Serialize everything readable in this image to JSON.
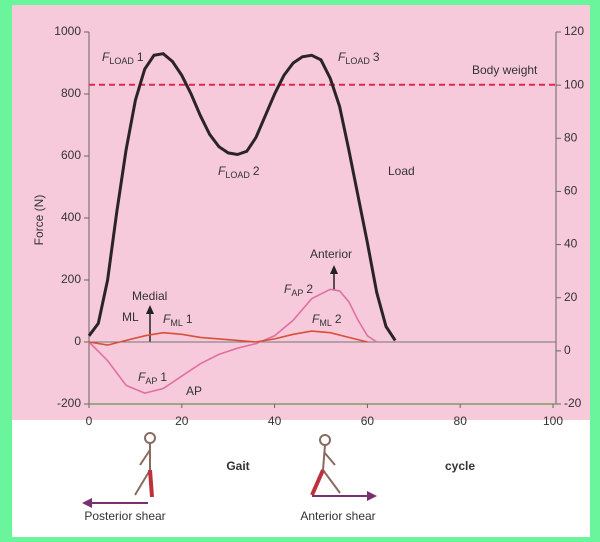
{
  "chart_data": {
    "type": "line",
    "y_label": "Force (N)",
    "x_label_parts": [
      "Gait",
      "cycle"
    ],
    "xlim": [
      0,
      100
    ],
    "xticks": [
      0,
      20,
      40,
      60,
      80,
      100
    ],
    "ylim": [
      -200,
      1000
    ],
    "yticks": [
      -200,
      0,
      200,
      400,
      600,
      800,
      1000
    ],
    "y2lim": [
      -20,
      120
    ],
    "y2ticks": [
      -20,
      0,
      20,
      40,
      60,
      80,
      100,
      120
    ],
    "series": [
      {
        "name": "Load",
        "color": "#2b2426",
        "x": [
          0,
          2,
          4,
          6,
          8,
          10,
          12,
          14,
          16,
          18,
          20,
          22,
          24,
          26,
          28,
          30,
          32,
          34,
          36,
          38,
          40,
          42,
          44,
          46,
          48,
          50,
          52,
          54,
          56,
          58,
          60,
          62,
          64,
          66
        ],
        "values": [
          20,
          60,
          200,
          420,
          620,
          780,
          880,
          925,
          930,
          905,
          860,
          800,
          730,
          670,
          630,
          610,
          605,
          615,
          660,
          730,
          800,
          860,
          900,
          920,
          925,
          910,
          850,
          760,
          620,
          470,
          320,
          160,
          50,
          5
        ]
      },
      {
        "name": "AP",
        "color": "#e070a0",
        "x": [
          0,
          4,
          8,
          12,
          16,
          20,
          24,
          28,
          32,
          36,
          40,
          44,
          48,
          52,
          54,
          56,
          58,
          60,
          62
        ],
        "values": [
          0,
          -60,
          -140,
          -165,
          -150,
          -110,
          -70,
          -40,
          -20,
          -5,
          20,
          70,
          140,
          170,
          165,
          130,
          70,
          20,
          0
        ]
      },
      {
        "name": "ML",
        "color": "#d8503a",
        "x": [
          0,
          4,
          8,
          12,
          16,
          20,
          24,
          28,
          32,
          36,
          40,
          44,
          48,
          52,
          56,
          60
        ],
        "values": [
          0,
          -10,
          5,
          20,
          30,
          25,
          15,
          10,
          5,
          0,
          10,
          25,
          35,
          30,
          15,
          0
        ]
      }
    ],
    "reference_line": {
      "label": "Body weight",
      "value": 830,
      "color": "#e0284a"
    },
    "annotations": [
      {
        "text": "F",
        "sub": "LOAD",
        "num": "1"
      },
      {
        "text": "F",
        "sub": "LOAD",
        "num": "2"
      },
      {
        "text": "F",
        "sub": "LOAD",
        "num": "3"
      },
      {
        "text": "Medial"
      },
      {
        "text": "F",
        "sub": "ML",
        "num": "1"
      },
      {
        "text": "F",
        "sub": "AP",
        "num": "1"
      },
      {
        "text": "F",
        "sub": "AP",
        "num": "2"
      },
      {
        "text": "Anterior"
      },
      {
        "text": "F",
        "sub": "ML",
        "num": "2"
      }
    ],
    "shear_labels": [
      "Posterior shear",
      "Anterior shear"
    ]
  }
}
